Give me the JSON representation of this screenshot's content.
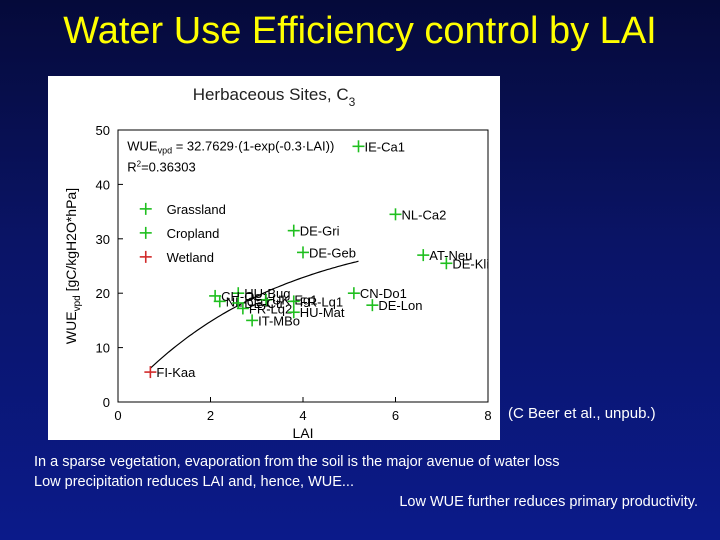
{
  "slide": {
    "title": "Water Use Efficiency control by LAI",
    "credit": "(C Beer et al., unpub.)",
    "caption_lines": [
      "In a sparse vegetation, evaporation from the soil is the major avenue of water loss",
      "Low precipitation reduces LAI and, hence, WUE...",
      "Low WUE further reduces primary productivity."
    ]
  },
  "colors": {
    "background": "#0a1466",
    "title": "#ffff00",
    "grassland": "#1fbf1f",
    "cropland": "#1fbf1f",
    "wetland": "#d12a2a",
    "fit_line": "#000000"
  },
  "chart_data": {
    "type": "scatter",
    "title": "Herbaceous Sites, C",
    "title_subscript": "3",
    "xlabel": "LAI",
    "ylabel": "WUE",
    "ylabel_subscript": "vpd",
    "ylabel_unit": "[gC/kgH2O*hPa]",
    "xlim": [
      0,
      8
    ],
    "ylim": [
      0,
      50
    ],
    "xticks": [
      0,
      2,
      4,
      6,
      8
    ],
    "yticks": [
      0,
      10,
      20,
      30,
      40,
      50
    ],
    "legend": {
      "placement": "top-left",
      "entries": [
        {
          "label": "Grassland",
          "series": "grassland"
        },
        {
          "label": "Cropland",
          "series": "cropland"
        },
        {
          "label": "Wetland",
          "series": "wetland"
        }
      ]
    },
    "fit": {
      "equation": "WUE",
      "equation_sub": "vpd",
      "equation_rest": " = 32.7629·(1-exp(-0.3·LAI))",
      "r2_label": "R",
      "r2_sup": "2",
      "r2_value": "=0.36303",
      "a": 32.7629,
      "b": 0.3
    },
    "points": [
      {
        "label": "IE-Ca1",
        "x": 5.2,
        "y": 47,
        "series": "grassland"
      },
      {
        "label": "NL-Ca2",
        "x": 6.0,
        "y": 34.5,
        "series": "grassland"
      },
      {
        "label": "DE-Gri",
        "x": 3.8,
        "y": 31.5,
        "series": "grassland"
      },
      {
        "label": "DE-Geb",
        "x": 4.0,
        "y": 27.5,
        "series": "cropland"
      },
      {
        "label": "AT-Neu",
        "x": 6.6,
        "y": 27,
        "series": "grassland"
      },
      {
        "label": "DE-Kli",
        "x": 7.1,
        "y": 25.5,
        "series": "cropland"
      },
      {
        "label": "HU-Bug",
        "x": 2.6,
        "y": 20,
        "series": "grassland"
      },
      {
        "label": "CN-Do1",
        "x": 5.1,
        "y": 20,
        "series": "grassland"
      },
      {
        "label": "DE-Lon",
        "x": 5.5,
        "y": 17.8,
        "series": "cropland"
      },
      {
        "label": "CH-Oe1",
        "x": 2.1,
        "y": 19.5,
        "series": "grassland"
      },
      {
        "label": "NL-Ca1",
        "x": 2.2,
        "y": 18.5,
        "series": "grassland"
      },
      {
        "label": "UK-Eg1",
        "x": 3.2,
        "y": 18.8,
        "series": "grassland"
      },
      {
        "label": "FR-Lq1",
        "x": 3.8,
        "y": 18.5,
        "series": "grassland"
      },
      {
        "label": "DE-Ctr",
        "x": 2.6,
        "y": 18.2,
        "series": "grassland"
      },
      {
        "label": "FR-Lq2",
        "x": 2.7,
        "y": 17.2,
        "series": "grassland"
      },
      {
        "label": "HU-Mat",
        "x": 3.8,
        "y": 16.5,
        "series": "grassland"
      },
      {
        "label": "IT-MBo",
        "x": 2.9,
        "y": 15,
        "series": "grassland"
      },
      {
        "label": "FI-Kaa",
        "x": 0.7,
        "y": 5.5,
        "series": "wetland"
      }
    ]
  }
}
